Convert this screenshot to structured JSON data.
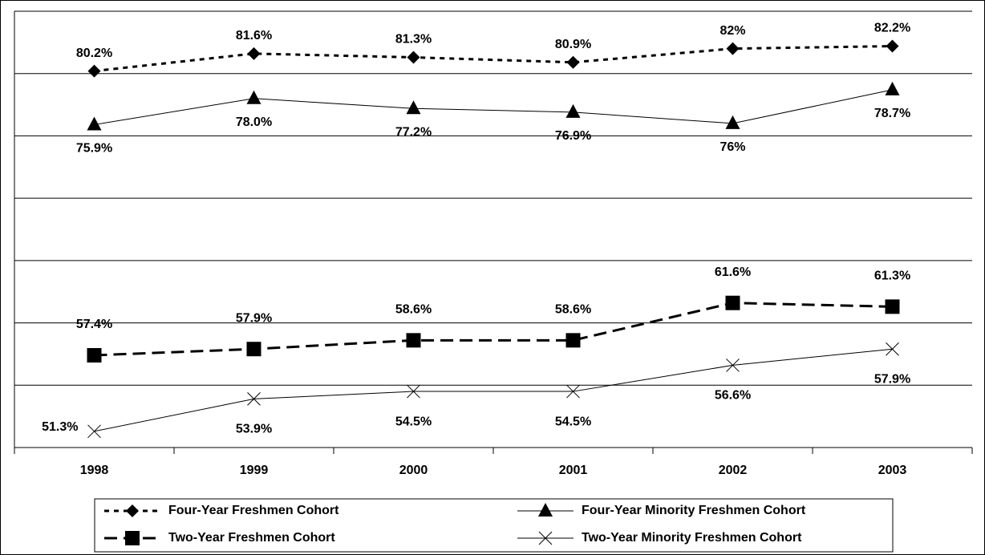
{
  "chart_data": {
    "type": "line",
    "categories": [
      "1998",
      "1999",
      "2000",
      "2001",
      "2002",
      "2003"
    ],
    "ylim": [
      50,
      85
    ],
    "yticks": [
      50,
      55,
      60,
      65,
      70,
      75,
      80,
      85
    ],
    "grid": true,
    "series": [
      {
        "name": "Four-Year Freshmen Cohort",
        "color": "#000000",
        "marker": "diamond",
        "dash": "6,6",
        "width": 3,
        "values": [
          80.2,
          81.6,
          81.3,
          80.9,
          82,
          82.2
        ],
        "value_labels": [
          "80.2%",
          "81.6%",
          "81.3%",
          "80.9%",
          "82%",
          "82.2%"
        ]
      },
      {
        "name": "Four-Year Minority Freshmen Cohort",
        "color": "#000000",
        "marker": "triangle",
        "dash": "",
        "width": 1,
        "values": [
          75.9,
          78.0,
          77.2,
          76.9,
          76,
          78.7
        ],
        "value_labels": [
          "75.9%",
          "78.0%",
          "77.2%",
          "76.9%",
          "76%",
          "78.7%"
        ]
      },
      {
        "name": "Two-Year Freshmen Cohort",
        "color": "#000000",
        "marker": "square",
        "dash": "16,8",
        "width": 3,
        "values": [
          57.4,
          57.9,
          58.6,
          58.6,
          61.6,
          61.3
        ],
        "value_labels": [
          "57.4%",
          "57.9%",
          "58.6%",
          "58.6%",
          "61.6%",
          "61.3%"
        ]
      },
      {
        "name": "Two-Year Minority Freshmen Cohort",
        "color": "#000000",
        "marker": "x",
        "dash": "",
        "width": 1,
        "values": [
          51.3,
          53.9,
          54.5,
          54.5,
          56.6,
          57.9
        ],
        "value_labels": [
          "51.3%",
          "53.9%",
          "54.5%",
          "54.5%",
          "56.6%",
          "57.9%"
        ]
      }
    ]
  }
}
